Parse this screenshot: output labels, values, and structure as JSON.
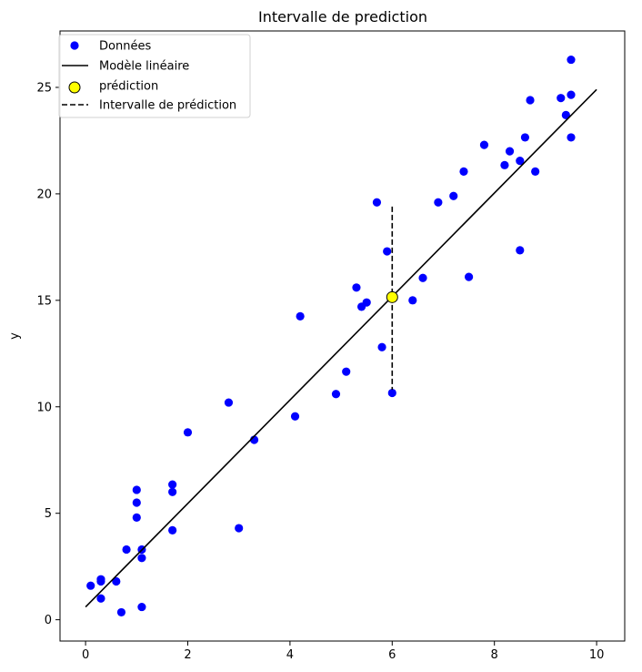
{
  "chart_data": {
    "type": "scatter",
    "title": "Intervalle de prediction",
    "xlabel": "",
    "ylabel": "y",
    "xlim": [
      -0.5,
      10.55
    ],
    "ylim": [
      -1.0,
      27.65
    ],
    "xticks": [
      0,
      2,
      4,
      6,
      8,
      10
    ],
    "yticks": [
      0,
      5,
      10,
      15,
      20,
      25
    ],
    "grid": false,
    "legend_position": "top-left",
    "colors": {
      "points": "#0000ff",
      "line": "#000000",
      "prediction_fill": "#ffff00",
      "interval": "#000000"
    },
    "series": [
      {
        "name": "Données",
        "kind": "scatter",
        "points": [
          [
            0.1,
            1.6
          ],
          [
            0.3,
            1.9
          ],
          [
            0.3,
            1.8
          ],
          [
            0.3,
            1.0
          ],
          [
            0.6,
            1.8
          ],
          [
            0.7,
            0.35
          ],
          [
            0.8,
            3.3
          ],
          [
            1.0,
            6.1
          ],
          [
            1.0,
            5.5
          ],
          [
            1.0,
            4.8
          ],
          [
            1.1,
            3.3
          ],
          [
            1.1,
            2.9
          ],
          [
            1.1,
            0.6
          ],
          [
            1.7,
            6.35
          ],
          [
            1.7,
            6.0
          ],
          [
            1.7,
            4.2
          ],
          [
            2.0,
            8.8
          ],
          [
            2.8,
            10.2
          ],
          [
            3.0,
            4.3
          ],
          [
            3.3,
            8.45
          ],
          [
            4.1,
            9.55
          ],
          [
            4.2,
            14.25
          ],
          [
            4.9,
            10.6
          ],
          [
            5.1,
            11.65
          ],
          [
            5.3,
            15.6
          ],
          [
            5.4,
            14.7
          ],
          [
            5.5,
            14.9
          ],
          [
            5.7,
            19.6
          ],
          [
            5.8,
            12.8
          ],
          [
            5.9,
            17.3
          ],
          [
            6.0,
            10.65
          ],
          [
            6.4,
            15.0
          ],
          [
            6.6,
            16.05
          ],
          [
            6.9,
            19.6
          ],
          [
            7.2,
            19.9
          ],
          [
            7.4,
            21.05
          ],
          [
            7.5,
            16.1
          ],
          [
            7.8,
            22.3
          ],
          [
            8.2,
            21.35
          ],
          [
            8.3,
            22.0
          ],
          [
            8.5,
            21.55
          ],
          [
            8.5,
            17.35
          ],
          [
            8.6,
            22.65
          ],
          [
            8.7,
            24.4
          ],
          [
            8.8,
            21.05
          ],
          [
            9.3,
            24.5
          ],
          [
            9.4,
            23.7
          ],
          [
            9.5,
            24.65
          ],
          [
            9.5,
            22.65
          ],
          [
            9.5,
            26.3
          ]
        ]
      },
      {
        "name": "Modèle linéaire",
        "kind": "line",
        "x": [
          0,
          10
        ],
        "y": [
          0.6,
          24.9
        ]
      },
      {
        "name": "prédiction",
        "kind": "point",
        "x": 6.0,
        "y": 15.15
      },
      {
        "name": "Intervalle de prédiction",
        "kind": "vline-dashed",
        "x": 6.0,
        "y_low": 10.8,
        "y_high": 19.4
      }
    ],
    "legend": [
      "Données",
      "Modèle linéaire",
      "prédiction",
      "Intervalle de prédiction"
    ]
  }
}
